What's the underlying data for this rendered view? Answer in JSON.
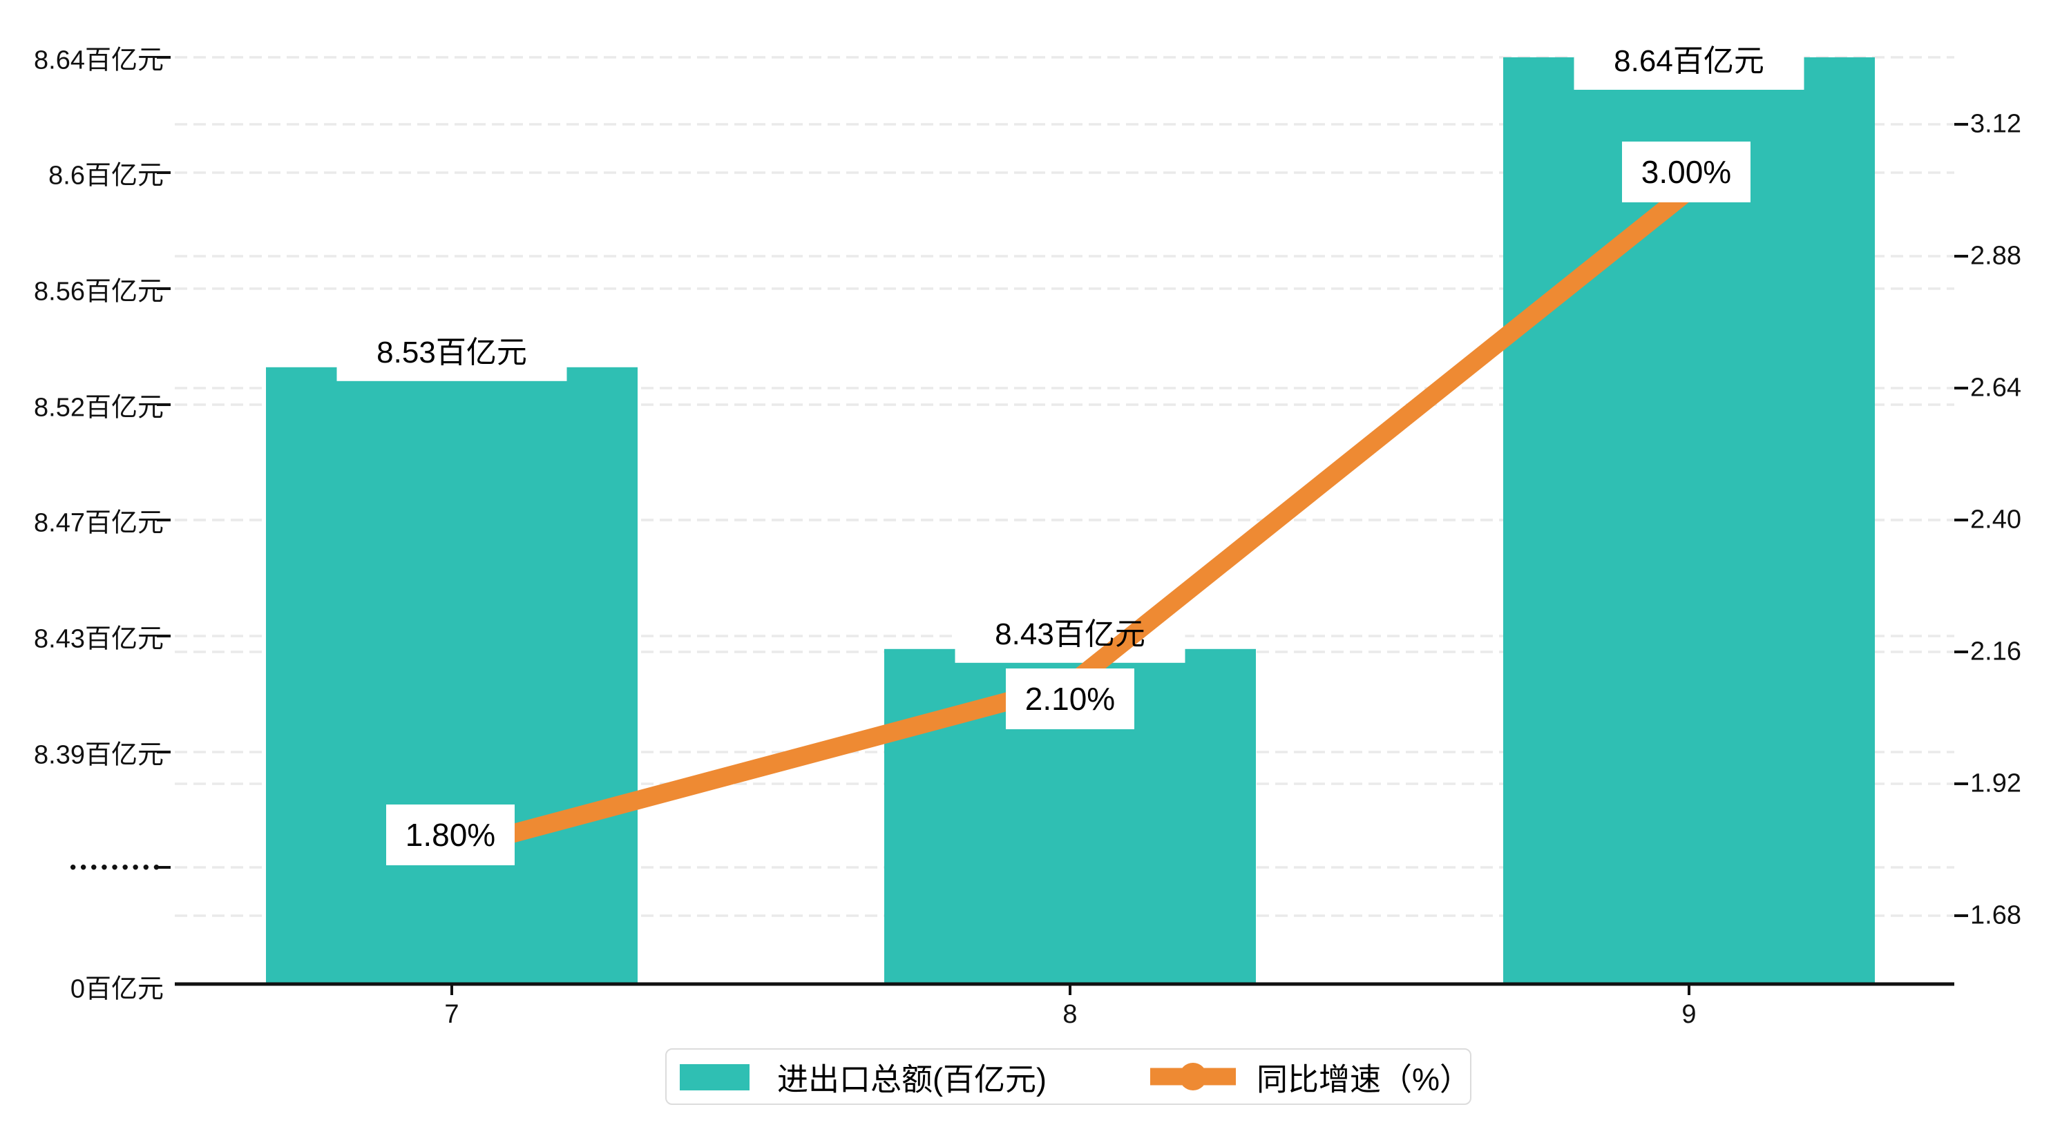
{
  "chart_data": {
    "type": "bar+line",
    "title": "",
    "categories": [
      "7",
      "8",
      "9"
    ],
    "series": [
      {
        "name": "进出口总额(百亿元)",
        "type": "bar",
        "axis": "left",
        "unit": "百亿元",
        "color": "#2FBFB3",
        "values": [
          8.53,
          8.43,
          8.64
        ],
        "data_labels": [
          "8.53百亿元",
          "8.43百亿元",
          "8.64百亿元"
        ]
      },
      {
        "name": "同比增速（%）",
        "type": "line",
        "axis": "right",
        "unit": "%",
        "color": "#EE8A33",
        "values": [
          1.8,
          2.1,
          3.0
        ],
        "data_labels": [
          "1.80%",
          "2.10%",
          "3.00%"
        ]
      }
    ],
    "left_axis": {
      "axis_break": true,
      "tick_labels": [
        "8.64百亿元",
        "8.6百亿元",
        "8.56百亿元",
        "8.52百亿元",
        "8.47百亿元",
        "8.43百亿元",
        "8.39百亿元",
        "•••••••••",
        "0百亿元"
      ]
    },
    "right_axis": {
      "min": 1.68,
      "max": 3.12,
      "step": 0.24,
      "tick_labels": [
        "3.12",
        "2.88",
        "2.64",
        "2.40",
        "2.16",
        "1.92",
        "1.68"
      ]
    },
    "x_axis": {
      "tick_labels": [
        "7",
        "8",
        "9"
      ]
    },
    "legend": {
      "items": [
        {
          "label": "进出口总额(百亿元)",
          "marker": "square",
          "color": "#2FBFB3"
        },
        {
          "label": "同比增速（%）",
          "marker": "line-dot",
          "color": "#EE8A33"
        }
      ]
    },
    "grid": {
      "dashed": true,
      "vertical_lines": false
    },
    "colors": {
      "bar": "#2FBFB3",
      "line": "#EE8A33",
      "grid": "#EAEAEA",
      "axis": "#111111",
      "text": "#111111",
      "legend_border": "#DCDCDC",
      "label_box_background": "#FFFFFF",
      "background": "#FFFFFF"
    }
  }
}
